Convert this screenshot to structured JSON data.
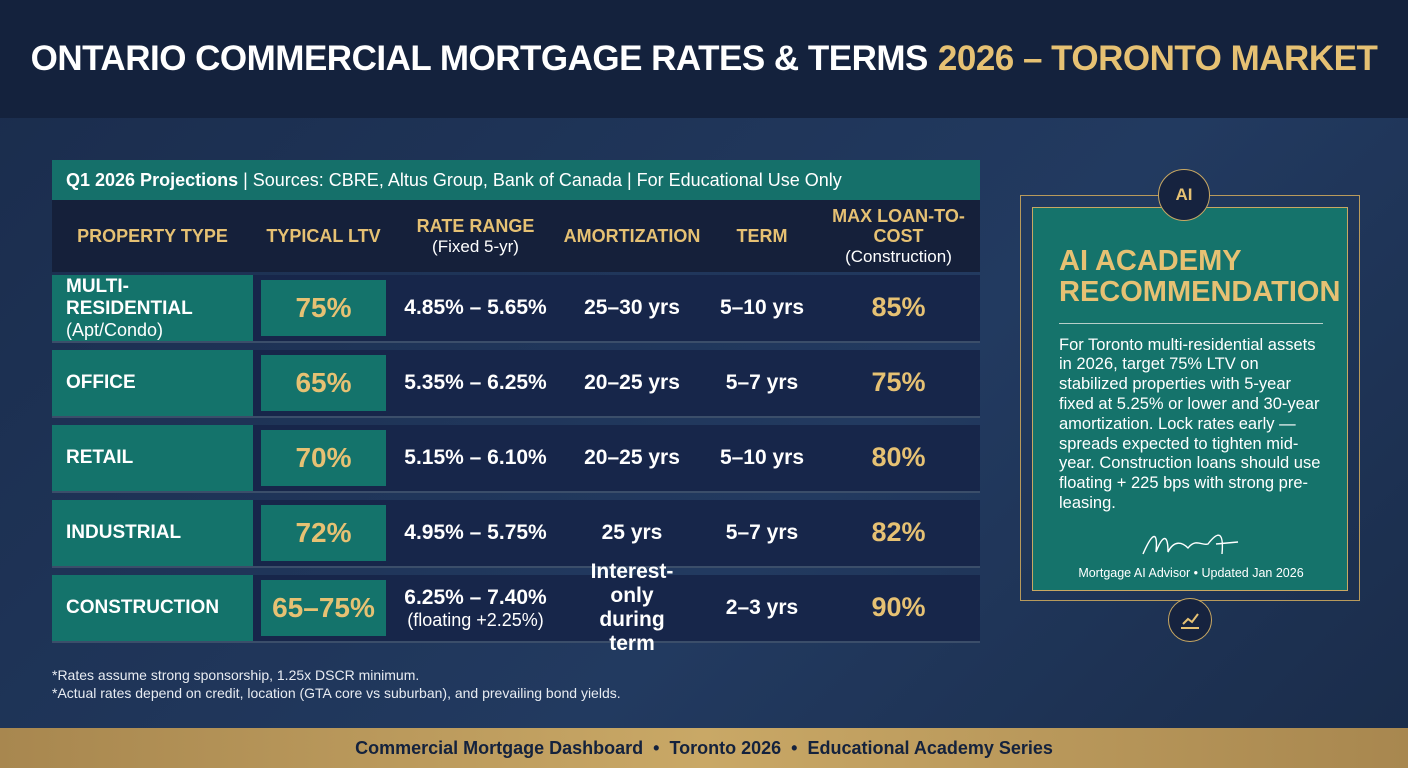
{
  "header": {
    "title": "ONTARIO COMMERCIAL MORTGAGE RATES & TERMS",
    "title_highlight": "2026 – TORONTO MARKET"
  },
  "table": {
    "caption_bold": "Q1 2026 Projections",
    "caption": "| Sources: CBRE, Altus Group, Bank of Canada | For Educational Use Only",
    "columns": [
      {
        "label": "PROPERTY TYPE"
      },
      {
        "label": "TYPICAL LTV"
      },
      {
        "label": "RATE RANGE",
        "note": "(Fixed 5-yr)"
      },
      {
        "label": "AMORTIZATION"
      },
      {
        "label": "TERM"
      },
      {
        "label": "MAX LOAN-TO-COST",
        "note": "(Construction)"
      }
    ],
    "rows": [
      {
        "type": "MULTI-RESIDENTIAL",
        "type_note": "(Apt/Condo)",
        "ltv": "75%",
        "rate": "4.85% – 5.65%",
        "amortization": "25–30 yrs",
        "term": "5–10 yrs",
        "max_ltc": "85%"
      },
      {
        "type": "OFFICE",
        "ltv": "65%",
        "rate": "5.35% – 6.25%",
        "amortization": "20–25 yrs",
        "term": "5–7 yrs",
        "max_ltc": "75%"
      },
      {
        "type": "RETAIL",
        "ltv": "70%",
        "rate": "5.15% – 6.10%",
        "amortization": "20–25 yrs",
        "term": "5–10 yrs",
        "max_ltc": "80%"
      },
      {
        "type": "INDUSTRIAL",
        "ltv": "72%",
        "rate": "4.95% – 5.75%",
        "amortization": "25 yrs",
        "term": "5–7 yrs",
        "max_ltc": "82%"
      },
      {
        "type": "CONSTRUCTION",
        "ltv": "65–75%",
        "rate": "6.25% – 7.40%",
        "rate_note": "(floating +2.25%)",
        "amortization": "Interest-only during term",
        "term": "2–3 yrs",
        "max_ltc": "90%"
      }
    ],
    "footnotes": [
      "*Rates assume strong sponsorship, 1.25x DSCR minimum.",
      "*Actual rates depend on credit, location (GTA core vs suburban), and prevailing bond yields."
    ]
  },
  "panel": {
    "icon_label": "AI",
    "title": "AI ACADEMY RECOMMENDATION",
    "body": "For Toronto multi-residential assets in 2026, target 75% LTV on stabilized properties with 5-year fixed at 5.25% or lower and 30-year amortization. Lock rates early — spreads expected to tighten mid-year. Construction loans should use floating + 225 bps with strong pre-leasing.",
    "caption": "Mortgage AI Advisor • Updated Jan 2026"
  },
  "footer": {
    "items": [
      "Commercial Mortgage Dashboard",
      "Toronto 2026",
      "Educational Academy Series"
    ]
  }
}
